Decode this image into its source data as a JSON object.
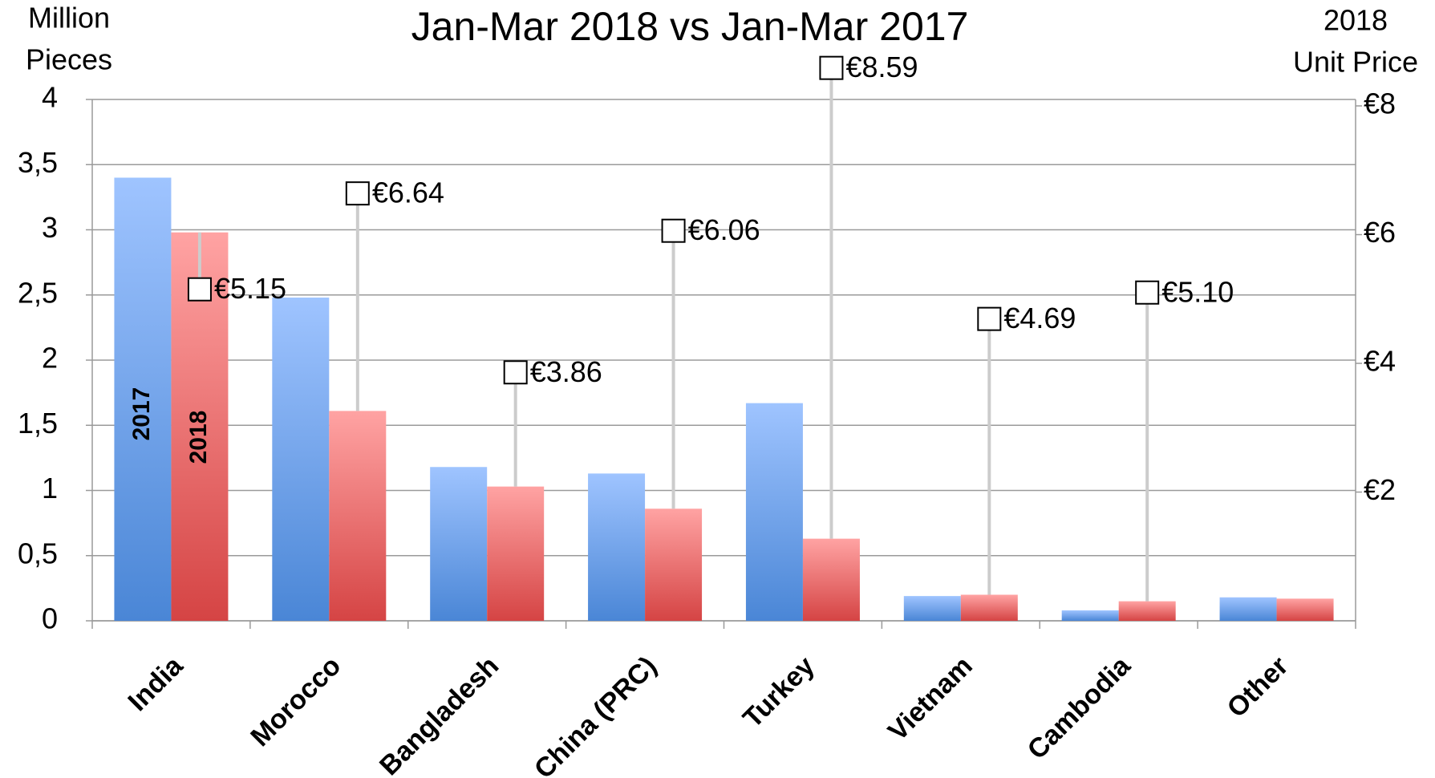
{
  "chart_data": {
    "type": "bar",
    "title": "Jan-Mar 2018 vs Jan-Mar 2017",
    "ylabel_lines": [
      "Million",
      "Pieces"
    ],
    "y2label_lines": [
      "2018",
      "Unit Price"
    ],
    "categories": [
      "India",
      "Morocco",
      "Bangladesh",
      "China (PRC)",
      "Turkey",
      "Vietnam",
      "Cambodia",
      "Other"
    ],
    "series": [
      {
        "name": "2017",
        "color": "#4a86d6",
        "color_top": "#9fc4ff",
        "values": [
          3.4,
          2.48,
          1.18,
          1.13,
          1.67,
          0.19,
          0.08,
          0.18
        ]
      },
      {
        "name": "2018",
        "color": "#d54444",
        "color_top": "#ffa3a3",
        "values": [
          2.98,
          1.61,
          1.03,
          0.86,
          0.63,
          0.2,
          0.15,
          0.17
        ]
      }
    ],
    "price_series": {
      "axis": "y2",
      "color": "#cccccc",
      "values": [
        5.15,
        6.64,
        3.86,
        6.06,
        8.59,
        4.69,
        5.1,
        null
      ],
      "value_labels": [
        "€5.15",
        "€6.64",
        "€3.86",
        "€6.06",
        "€8.59",
        "€4.69",
        "€5.10",
        null
      ]
    },
    "ylim": [
      0,
      4
    ],
    "yticks": [
      0,
      {
        "value": 0.5,
        "label": "0,5"
      },
      1,
      {
        "value": 1.5,
        "label": "1,5"
      },
      2,
      {
        "value": 2.5,
        "label": "2,5"
      },
      3,
      {
        "value": 3.5,
        "label": "3,5"
      },
      4
    ],
    "y2lim": [
      0,
      8.1
    ],
    "y2ticks": [
      {
        "value": 2,
        "label": "€2"
      },
      {
        "value": 4,
        "label": "€4"
      },
      {
        "value": 6,
        "label": "€6"
      },
      {
        "value": 8,
        "label": "€8"
      }
    ],
    "grid": true
  }
}
